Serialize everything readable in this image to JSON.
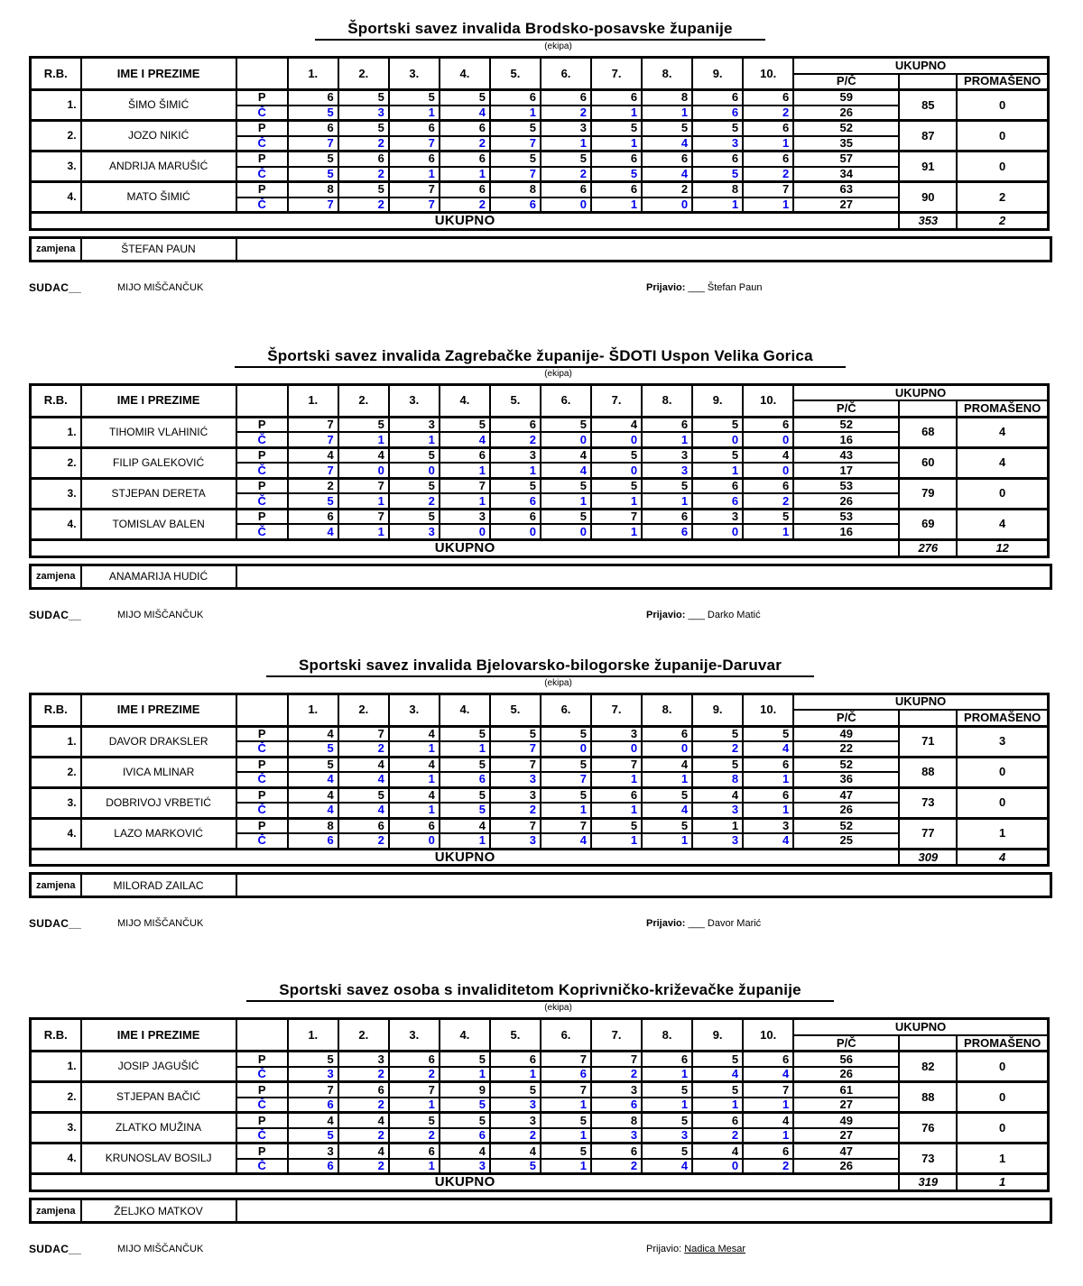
{
  "colors": {
    "c_row_blue": "#0000EE",
    "ink": "#000000"
  },
  "shared": {
    "ekipa": "(ekipa)",
    "header": {
      "rb": "R.B.",
      "name": "IME I PREZIME",
      "series": [
        "1.",
        "2.",
        "3.",
        "4.",
        "5.",
        "6.",
        "7.",
        "8.",
        "9.",
        "10."
      ],
      "ukupno": "UKUPNO",
      "pc": "P/Č",
      "promaseno": "PROMAŠENO"
    },
    "p_label": "P",
    "c_label": "Č",
    "ukupno_row": "UKUPNO",
    "zamjena_label": "zamjena",
    "sudac_label": "SUDAC__",
    "prijavio_label": "Prijavio:"
  },
  "tables": [
    {
      "title": "Športski savez invalida Brodsko-posavske županije",
      "players": [
        {
          "rb": "1.",
          "name": "ŠIMO ŠIMIĆ",
          "p": [
            "6",
            "5",
            "5",
            "5",
            "6",
            "6",
            "6",
            "8",
            "6",
            "6"
          ],
          "c": [
            "5",
            "3",
            "1",
            "4",
            "1",
            "2",
            "1",
            "1",
            "6",
            "2"
          ],
          "p_sum": "59",
          "c_sum": "26",
          "total": "85",
          "missed": "0"
        },
        {
          "rb": "2.",
          "name": "JOZO NIKIĆ",
          "p": [
            "6",
            "5",
            "6",
            "6",
            "5",
            "3",
            "5",
            "5",
            "5",
            "6"
          ],
          "c": [
            "7",
            "2",
            "7",
            "2",
            "7",
            "1",
            "1",
            "4",
            "3",
            "1"
          ],
          "p_sum": "52",
          "c_sum": "35",
          "total": "87",
          "missed": "0"
        },
        {
          "rb": "3.",
          "name": "ANDRIJA MARUŠIĆ",
          "p": [
            "5",
            "6",
            "6",
            "6",
            "5",
            "5",
            "6",
            "6",
            "6",
            "6"
          ],
          "c": [
            "5",
            "2",
            "1",
            "1",
            "7",
            "2",
            "5",
            "4",
            "5",
            "2"
          ],
          "p_sum": "57",
          "c_sum": "34",
          "total": "91",
          "missed": "0"
        },
        {
          "rb": "4.",
          "name": "MATO ŠIMIĆ",
          "p": [
            "8",
            "5",
            "7",
            "6",
            "8",
            "6",
            "6",
            "2",
            "8",
            "7"
          ],
          "c": [
            "7",
            "2",
            "7",
            "2",
            "6",
            "0",
            "1",
            "0",
            "1",
            "1"
          ],
          "p_sum": "63",
          "c_sum": "27",
          "total": "90",
          "missed": "2"
        }
      ],
      "team_total": "353",
      "team_missed": "2",
      "zamjena": "ŠTEFAN PAUN",
      "sudac": "MIJO MIŠČANČUK",
      "prijavio_blank": "___ ",
      "prijavio_name": "Štefan Paun",
      "prijavio_underline": false
    },
    {
      "title": "Športski savez invalida Zagrebačke županije- ŠDOTI Uspon Velika Gorica",
      "players": [
        {
          "rb": "1.",
          "name": "TIHOMIR VLAHINIĆ",
          "p": [
            "7",
            "5",
            "3",
            "5",
            "6",
            "5",
            "4",
            "6",
            "5",
            "6"
          ],
          "c": [
            "7",
            "1",
            "1",
            "4",
            "2",
            "0",
            "0",
            "1",
            "0",
            "0"
          ],
          "p_sum": "52",
          "c_sum": "16",
          "total": "68",
          "missed": "4"
        },
        {
          "rb": "2.",
          "name": "FILIP GALEKOVIĆ",
          "p": [
            "4",
            "4",
            "5",
            "6",
            "3",
            "4",
            "5",
            "3",
            "5",
            "4"
          ],
          "c": [
            "7",
            "0",
            "0",
            "1",
            "1",
            "4",
            "0",
            "3",
            "1",
            "0"
          ],
          "p_sum": "43",
          "c_sum": "17",
          "total": "60",
          "missed": "4"
        },
        {
          "rb": "3.",
          "name": "STJEPAN DERETA",
          "p": [
            "2",
            "7",
            "5",
            "7",
            "5",
            "5",
            "5",
            "5",
            "6",
            "6"
          ],
          "c": [
            "5",
            "1",
            "2",
            "1",
            "6",
            "1",
            "1",
            "1",
            "6",
            "2"
          ],
          "p_sum": "53",
          "c_sum": "26",
          "total": "79",
          "missed": "0"
        },
        {
          "rb": "4.",
          "name": "TOMISLAV BALEN",
          "p": [
            "6",
            "7",
            "5",
            "3",
            "6",
            "5",
            "7",
            "6",
            "3",
            "5"
          ],
          "c": [
            "4",
            "1",
            "3",
            "0",
            "0",
            "0",
            "1",
            "6",
            "0",
            "1"
          ],
          "p_sum": "53",
          "c_sum": "16",
          "total": "69",
          "missed": "4"
        }
      ],
      "team_total": "276",
      "team_missed": "12",
      "zamjena": "ANAMARIJA HUDIĆ",
      "sudac": "MIJO MIŠČANČUK",
      "prijavio_blank": "___ ",
      "prijavio_name": "Darko Matić",
      "prijavio_underline": false
    },
    {
      "title": "Sportski savez invalida Bjelovarsko-bilogorske županije-Daruvar",
      "players": [
        {
          "rb": "1.",
          "name": "DAVOR DRAKSLER",
          "p": [
            "4",
            "7",
            "4",
            "5",
            "5",
            "5",
            "3",
            "6",
            "5",
            "5"
          ],
          "c": [
            "5",
            "2",
            "1",
            "1",
            "7",
            "0",
            "0",
            "0",
            "2",
            "4"
          ],
          "p_sum": "49",
          "c_sum": "22",
          "total": "71",
          "missed": "3"
        },
        {
          "rb": "2.",
          "name": "IVICA MLINAR",
          "p": [
            "5",
            "4",
            "4",
            "5",
            "7",
            "5",
            "7",
            "4",
            "5",
            "6"
          ],
          "c": [
            "4",
            "4",
            "1",
            "6",
            "3",
            "7",
            "1",
            "1",
            "8",
            "1"
          ],
          "p_sum": "52",
          "c_sum": "36",
          "total": "88",
          "missed": "0"
        },
        {
          "rb": "3.",
          "name": "DOBRIVOJ VRBETIĆ",
          "p": [
            "4",
            "5",
            "4",
            "5",
            "3",
            "5",
            "6",
            "5",
            "4",
            "6"
          ],
          "c": [
            "4",
            "4",
            "1",
            "5",
            "2",
            "1",
            "1",
            "4",
            "3",
            "1"
          ],
          "p_sum": "47",
          "c_sum": "26",
          "total": "73",
          "missed": "0"
        },
        {
          "rb": "4.",
          "name": "LAZO MARKOVIĆ",
          "p": [
            "8",
            "6",
            "6",
            "4",
            "7",
            "7",
            "5",
            "5",
            "1",
            "3"
          ],
          "c": [
            "6",
            "2",
            "0",
            "1",
            "3",
            "4",
            "1",
            "1",
            "3",
            "4"
          ],
          "p_sum": "52",
          "c_sum": "25",
          "total": "77",
          "missed": "1"
        }
      ],
      "team_total": "309",
      "team_missed": "4",
      "zamjena": "MILORAD ZAILAC",
      "sudac": "MIJO MIŠČANČUK",
      "prijavio_blank": "___ ",
      "prijavio_name": "Davor Marić",
      "prijavio_underline": false
    },
    {
      "title": "Sportski savez osoba s invaliditetom Koprivničko-križevačke županije",
      "players": [
        {
          "rb": "1.",
          "name": "JOSIP JAGUŠIĆ",
          "p": [
            "5",
            "3",
            "6",
            "5",
            "6",
            "7",
            "7",
            "6",
            "5",
            "6"
          ],
          "c": [
            "3",
            "2",
            "2",
            "1",
            "1",
            "6",
            "2",
            "1",
            "4",
            "4"
          ],
          "p_sum": "56",
          "c_sum": "26",
          "total": "82",
          "missed": "0"
        },
        {
          "rb": "2.",
          "name": "STJEPAN BAČIĆ",
          "p": [
            "7",
            "6",
            "7",
            "9",
            "5",
            "7",
            "3",
            "5",
            "5",
            "7"
          ],
          "c": [
            "6",
            "2",
            "1",
            "5",
            "3",
            "1",
            "6",
            "1",
            "1",
            "1"
          ],
          "p_sum": "61",
          "c_sum": "27",
          "total": "88",
          "missed": "0"
        },
        {
          "rb": "3.",
          "name": "ZLATKO MUŽINA",
          "p": [
            "4",
            "4",
            "5",
            "5",
            "3",
            "5",
            "8",
            "5",
            "6",
            "4"
          ],
          "c": [
            "5",
            "2",
            "2",
            "6",
            "2",
            "1",
            "3",
            "3",
            "2",
            "1"
          ],
          "p_sum": "49",
          "c_sum": "27",
          "total": "76",
          "missed": "0"
        },
        {
          "rb": "4.",
          "name": "KRUNOSLAV BOSILJ",
          "p": [
            "3",
            "4",
            "6",
            "4",
            "4",
            "5",
            "6",
            "5",
            "4",
            "6"
          ],
          "c": [
            "6",
            "2",
            "1",
            "3",
            "5",
            "1",
            "2",
            "4",
            "0",
            "2"
          ],
          "p_sum": "47",
          "c_sum": "26",
          "total": "73",
          "missed": "1"
        }
      ],
      "team_total": "319",
      "team_missed": "1",
      "zamjena": "ŽELJKO MATKOV",
      "sudac": "MIJO MIŠČANČUK",
      "prijavio_blank": "",
      "prijavio_name": "Nadica Mesar",
      "prijavio_underline": true
    }
  ]
}
